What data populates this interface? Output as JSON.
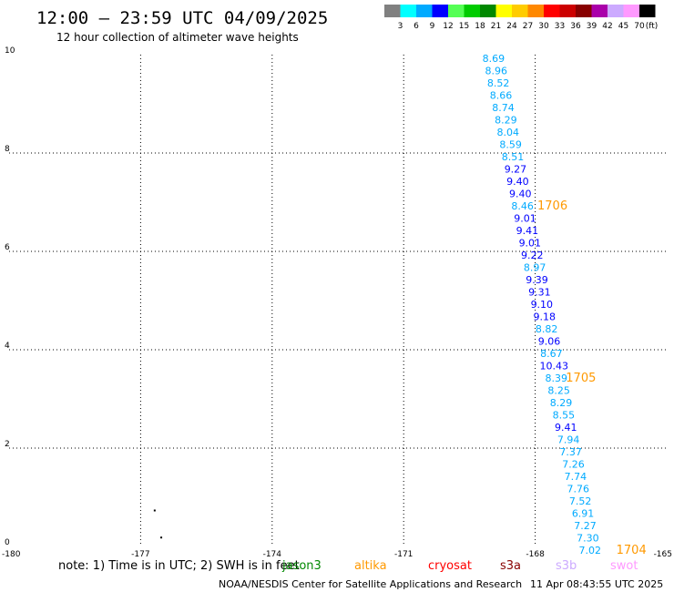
{
  "header": {
    "title": "12:00 — 23:59 UTC 04/09/2025",
    "subtitle": "12 hour collection of altimeter wave heights"
  },
  "color_legend": {
    "labels": [
      "3",
      "6",
      "9",
      "12",
      "15",
      "18",
      "21",
      "24",
      "27",
      "30",
      "33",
      "36",
      "39",
      "42",
      "45",
      "70"
    ],
    "unit": "(ft)",
    "colors": [
      "#808080",
      "#00ffff",
      "#00aaff",
      "#0000ff",
      "#55ff55",
      "#00cc00",
      "#008800",
      "#ffff00",
      "#ffcc00",
      "#ff8800",
      "#ff0000",
      "#cc0000",
      "#880000",
      "#aa00aa",
      "#ccaaff",
      "#ff99ff",
      "#000000"
    ]
  },
  "chart_data": {
    "type": "scatter",
    "xlim": [
      -180,
      -165
    ],
    "ylim": [
      0,
      10
    ],
    "x_ticks": [
      "-180",
      "-177",
      "-174",
      "-171",
      "-168",
      "-165"
    ],
    "x_tick_values": [
      -180,
      -177,
      -174,
      -171,
      -168,
      -165
    ],
    "y_ticks": [
      "0",
      "2",
      "4",
      "6",
      "8",
      "10"
    ],
    "y_tick_values": [
      0,
      2,
      4,
      6,
      8,
      10
    ],
    "grid": true,
    "points": [
      {
        "lon": -168.95,
        "lat": 9.85,
        "label": "8.69",
        "color": "#00aaff"
      },
      {
        "lon": -168.89,
        "lat": 9.6,
        "label": "8.96",
        "color": "#00aaff"
      },
      {
        "lon": -168.84,
        "lat": 9.35,
        "label": "8.52",
        "color": "#00aaff"
      },
      {
        "lon": -168.78,
        "lat": 9.1,
        "label": "8.66",
        "color": "#00aaff"
      },
      {
        "lon": -168.73,
        "lat": 8.85,
        "label": "8.74",
        "color": "#00aaff"
      },
      {
        "lon": -168.67,
        "lat": 8.6,
        "label": "8.29",
        "color": "#00aaff"
      },
      {
        "lon": -168.62,
        "lat": 8.35,
        "label": "8.04",
        "color": "#00aaff"
      },
      {
        "lon": -168.56,
        "lat": 8.1,
        "label": "8.59",
        "color": "#00aaff"
      },
      {
        "lon": -168.51,
        "lat": 7.85,
        "label": "8.51",
        "color": "#00aaff"
      },
      {
        "lon": -168.45,
        "lat": 7.6,
        "label": "9.27",
        "color": "#0000ff"
      },
      {
        "lon": -168.4,
        "lat": 7.35,
        "label": "9.40",
        "color": "#0000ff"
      },
      {
        "lon": -168.34,
        "lat": 7.1,
        "label": "9.40",
        "color": "#0000ff"
      },
      {
        "lon": -168.29,
        "lat": 6.85,
        "label": "8.46",
        "color": "#00aaff"
      },
      {
        "lon": -168.23,
        "lat": 6.6,
        "label": "9.01",
        "color": "#0000ff"
      },
      {
        "lon": -168.18,
        "lat": 6.35,
        "label": "9.41",
        "color": "#0000ff"
      },
      {
        "lon": -168.12,
        "lat": 6.1,
        "label": "9.01",
        "color": "#0000ff"
      },
      {
        "lon": -168.07,
        "lat": 5.85,
        "label": "9.22",
        "color": "#0000ff"
      },
      {
        "lon": -168.01,
        "lat": 5.6,
        "label": "8.97",
        "color": "#00aaff"
      },
      {
        "lon": -167.96,
        "lat": 5.35,
        "label": "9.39",
        "color": "#0000ff"
      },
      {
        "lon": -167.9,
        "lat": 5.1,
        "label": "9.31",
        "color": "#0000ff"
      },
      {
        "lon": -167.85,
        "lat": 4.85,
        "label": "9.10",
        "color": "#0000ff"
      },
      {
        "lon": -167.79,
        "lat": 4.6,
        "label": "9.18",
        "color": "#0000ff"
      },
      {
        "lon": -167.74,
        "lat": 4.35,
        "label": "8.82",
        "color": "#00aaff"
      },
      {
        "lon": -167.68,
        "lat": 4.1,
        "label": "9.06",
        "color": "#0000ff"
      },
      {
        "lon": -167.63,
        "lat": 3.85,
        "label": "8.67",
        "color": "#00aaff"
      },
      {
        "lon": -167.57,
        "lat": 3.6,
        "label": "10.43",
        "color": "#0000ff"
      },
      {
        "lon": -167.52,
        "lat": 3.35,
        "label": "8.39",
        "color": "#00aaff"
      },
      {
        "lon": -167.46,
        "lat": 3.1,
        "label": "8.25",
        "color": "#00aaff"
      },
      {
        "lon": -167.41,
        "lat": 2.85,
        "label": "8.29",
        "color": "#00aaff"
      },
      {
        "lon": -167.35,
        "lat": 2.6,
        "label": "8.55",
        "color": "#00aaff"
      },
      {
        "lon": -167.3,
        "lat": 2.35,
        "label": "9.41",
        "color": "#0000ff"
      },
      {
        "lon": -167.24,
        "lat": 2.1,
        "label": "7.94",
        "color": "#00aaff"
      },
      {
        "lon": -167.19,
        "lat": 1.85,
        "label": "7.37",
        "color": "#00aaff"
      },
      {
        "lon": -167.13,
        "lat": 1.6,
        "label": "7.26",
        "color": "#00aaff"
      },
      {
        "lon": -167.08,
        "lat": 1.35,
        "label": "7.74",
        "color": "#00aaff"
      },
      {
        "lon": -167.02,
        "lat": 1.1,
        "label": "7.76",
        "color": "#00aaff"
      },
      {
        "lon": -166.97,
        "lat": 0.85,
        "label": "7.52",
        "color": "#00aaff"
      },
      {
        "lon": -166.91,
        "lat": 0.6,
        "label": "6.91",
        "color": "#00aaff"
      },
      {
        "lon": -166.86,
        "lat": 0.35,
        "label": "7.27",
        "color": "#00aaff"
      },
      {
        "lon": -166.8,
        "lat": 0.1,
        "label": "7.30",
        "color": "#00aaff"
      },
      {
        "lon": -166.75,
        "lat": -0.15,
        "label": "7.02",
        "color": "#00aaff"
      }
    ],
    "pass_labels": [
      {
        "lon": -167.95,
        "lat": 6.85,
        "label": "1706"
      },
      {
        "lon": -167.3,
        "lat": 3.35,
        "label": "1705"
      },
      {
        "lon": -166.15,
        "lat": -0.15,
        "label": "1704"
      }
    ],
    "land_points": [
      {
        "lon": -176.7,
        "lat": 0.75
      },
      {
        "lon": -176.55,
        "lat": 0.2
      }
    ]
  },
  "note": "note:  1) Time is in UTC;  2) SWH is in feet",
  "satellites": [
    {
      "name": "jason3",
      "color": "#008800"
    },
    {
      "name": "altika",
      "color": "#ff9900"
    },
    {
      "name": "cryosat",
      "color": "#ff0000"
    },
    {
      "name": "s3a",
      "color": "#880000"
    },
    {
      "name": "s3b",
      "color": "#ccaaff"
    },
    {
      "name": "swot",
      "color": "#ff99ff"
    }
  ],
  "footer": {
    "credit": "NOAA/NESDIS Center for Satellite Applications and Research",
    "timestamp": "11 Apr 08:43:55 UTC 2025"
  }
}
